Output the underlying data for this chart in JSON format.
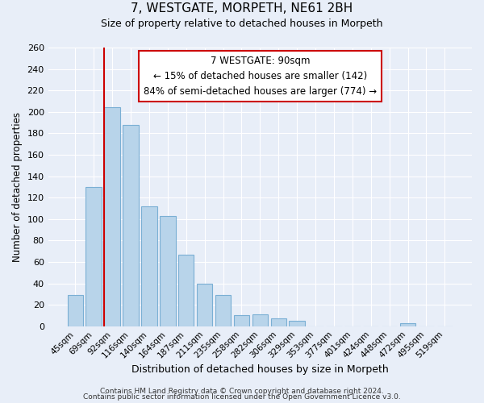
{
  "title": "7, WESTGATE, MORPETH, NE61 2BH",
  "subtitle": "Size of property relative to detached houses in Morpeth",
  "xlabel": "Distribution of detached houses by size in Morpeth",
  "ylabel": "Number of detached properties",
  "bar_labels": [
    "45sqm",
    "69sqm",
    "92sqm",
    "116sqm",
    "140sqm",
    "164sqm",
    "187sqm",
    "211sqm",
    "235sqm",
    "258sqm",
    "282sqm",
    "306sqm",
    "329sqm",
    "353sqm",
    "377sqm",
    "401sqm",
    "424sqm",
    "448sqm",
    "472sqm",
    "495sqm",
    "519sqm"
  ],
  "bar_values": [
    29,
    130,
    204,
    188,
    112,
    103,
    67,
    40,
    29,
    10,
    11,
    7,
    5,
    0,
    0,
    0,
    0,
    0,
    3,
    0,
    0
  ],
  "bar_color": "#b8d4ea",
  "bar_edge_color": "#7aafd4",
  "vline_x": 2,
  "vline_color": "#cc0000",
  "annotation_text": "7 WESTGATE: 90sqm\n← 15% of detached houses are smaller (142)\n84% of semi-detached houses are larger (774) →",
  "annotation_box_color": "#ffffff",
  "annotation_box_edge": "#cc0000",
  "ylim": [
    0,
    260
  ],
  "yticks": [
    0,
    20,
    40,
    60,
    80,
    100,
    120,
    140,
    160,
    180,
    200,
    220,
    240,
    260
  ],
  "footer_line1": "Contains HM Land Registry data © Crown copyright and database right 2024.",
  "footer_line2": "Contains public sector information licensed under the Open Government Licence v3.0.",
  "bg_color": "#e8eef8",
  "plot_bg_color": "#e8eef8"
}
